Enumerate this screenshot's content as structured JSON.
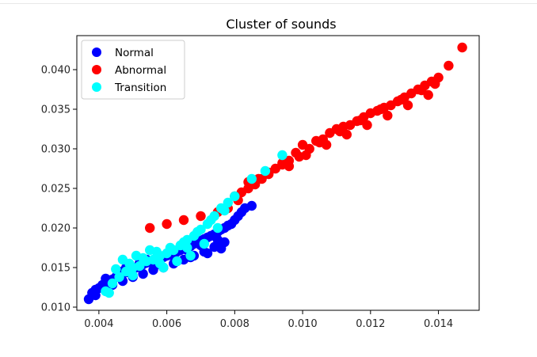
{
  "chart_data": {
    "type": "scatter",
    "title": "Cluster of sounds",
    "xlabel": "",
    "ylabel": "",
    "xlim": [
      0.00335,
      0.0152
    ],
    "ylim": [
      0.0096,
      0.0443
    ],
    "xticks": [
      0.004,
      0.006,
      0.008,
      0.01,
      0.012,
      0.014
    ],
    "xtick_labels": [
      "0.004",
      "0.006",
      "0.008",
      "0.010",
      "0.012",
      "0.014"
    ],
    "yticks": [
      0.01,
      0.015,
      0.02,
      0.025,
      0.03,
      0.035,
      0.04
    ],
    "ytick_labels": [
      "0.010",
      "0.015",
      "0.020",
      "0.025",
      "0.030",
      "0.035",
      "0.040"
    ],
    "grid": false,
    "legend_position": "upper-left",
    "series": [
      {
        "name": "Normal",
        "color": "#0000ff",
        "x": [
          0.0037,
          0.0038,
          0.0039,
          0.004,
          0.0041,
          0.0042,
          0.0043,
          0.0044,
          0.0045,
          0.0046,
          0.0047,
          0.0048,
          0.0049,
          0.005,
          0.0051,
          0.0052,
          0.0053,
          0.0054,
          0.0055,
          0.0056,
          0.0057,
          0.0058,
          0.0059,
          0.006,
          0.0061,
          0.0062,
          0.0063,
          0.0064,
          0.0065,
          0.0066,
          0.0067,
          0.0068,
          0.0069,
          0.007,
          0.0071,
          0.0072,
          0.0073,
          0.0074,
          0.0075,
          0.0076,
          0.0077,
          0.0078,
          0.0079,
          0.008,
          0.0081,
          0.0082,
          0.0083,
          0.0085,
          0.0044,
          0.0047,
          0.005,
          0.0053,
          0.0056,
          0.0059,
          0.0062,
          0.0065,
          0.0068,
          0.0071,
          0.0074,
          0.0077,
          0.0048,
          0.0052,
          0.0057,
          0.0061,
          0.0066,
          0.007,
          0.0075,
          0.0042,
          0.0046,
          0.0054,
          0.0058,
          0.0063,
          0.0067,
          0.0072,
          0.0076,
          0.0039
        ],
        "y": [
          0.011,
          0.0118,
          0.0122,
          0.0124,
          0.0128,
          0.013,
          0.0133,
          0.0135,
          0.0138,
          0.014,
          0.0142,
          0.0144,
          0.0146,
          0.0148,
          0.015,
          0.0152,
          0.0154,
          0.0156,
          0.0157,
          0.0158,
          0.016,
          0.0162,
          0.0163,
          0.0165,
          0.0166,
          0.0168,
          0.017,
          0.0172,
          0.0174,
          0.0175,
          0.0177,
          0.018,
          0.0182,
          0.0184,
          0.0186,
          0.0188,
          0.019,
          0.0192,
          0.0195,
          0.0198,
          0.02,
          0.0203,
          0.0205,
          0.021,
          0.0215,
          0.022,
          0.0225,
          0.0228,
          0.0128,
          0.0133,
          0.0138,
          0.0142,
          0.0147,
          0.015,
          0.0155,
          0.016,
          0.0165,
          0.017,
          0.0176,
          0.0182,
          0.015,
          0.0156,
          0.0162,
          0.0168,
          0.0172,
          0.0178,
          0.0185,
          0.0136,
          0.0145,
          0.016,
          0.0154,
          0.0158,
          0.0163,
          0.0168,
          0.0174,
          0.0115
        ]
      },
      {
        "name": "Abnormal",
        "color": "#ff0000",
        "x": [
          0.0055,
          0.006,
          0.0065,
          0.007,
          0.0075,
          0.0078,
          0.008,
          0.0082,
          0.0084,
          0.0086,
          0.0088,
          0.009,
          0.0092,
          0.0094,
          0.0096,
          0.0098,
          0.01,
          0.0102,
          0.0104,
          0.0106,
          0.0108,
          0.011,
          0.0112,
          0.0114,
          0.0116,
          0.0118,
          0.012,
          0.0122,
          0.0124,
          0.0126,
          0.0128,
          0.013,
          0.0132,
          0.0134,
          0.0136,
          0.0138,
          0.014,
          0.0143,
          0.0147,
          0.0084,
          0.009,
          0.0096,
          0.0101,
          0.0107,
          0.0113,
          0.0119,
          0.0125,
          0.0131,
          0.0137,
          0.0094,
          0.0099,
          0.0105,
          0.0111,
          0.0117,
          0.0123,
          0.0129,
          0.0135,
          0.0139,
          0.0081,
          0.0087
        ],
        "y": [
          0.02,
          0.0205,
          0.021,
          0.0215,
          0.022,
          0.0225,
          0.024,
          0.0245,
          0.025,
          0.0255,
          0.0262,
          0.0268,
          0.0275,
          0.028,
          0.0285,
          0.0295,
          0.0305,
          0.03,
          0.031,
          0.0312,
          0.032,
          0.0325,
          0.0328,
          0.033,
          0.0335,
          0.034,
          0.0345,
          0.0348,
          0.0352,
          0.0355,
          0.036,
          0.0365,
          0.037,
          0.0375,
          0.038,
          0.0385,
          0.039,
          0.0405,
          0.0428,
          0.0258,
          0.027,
          0.0278,
          0.0292,
          0.0305,
          0.0318,
          0.033,
          0.0342,
          0.0355,
          0.0368,
          0.0282,
          0.029,
          0.0308,
          0.0322,
          0.0336,
          0.035,
          0.0362,
          0.0374,
          0.0382,
          0.0235,
          0.0262
        ]
      },
      {
        "name": "Transition",
        "color": "#00ffff",
        "x": [
          0.0042,
          0.0044,
          0.0046,
          0.0048,
          0.005,
          0.0052,
          0.0054,
          0.0056,
          0.0058,
          0.006,
          0.0062,
          0.0064,
          0.0066,
          0.0068,
          0.007,
          0.0072,
          0.0074,
          0.0076,
          0.0078,
          0.008,
          0.0085,
          0.0089,
          0.0094,
          0.0045,
          0.0049,
          0.0053,
          0.0057,
          0.0061,
          0.0065,
          0.0069,
          0.0073,
          0.0077,
          0.0047,
          0.0051,
          0.0055,
          0.0059,
          0.0063,
          0.0067,
          0.0071,
          0.0075,
          0.0043,
          0.005,
          0.0058,
          0.0066
        ],
        "y": [
          0.012,
          0.013,
          0.0138,
          0.0145,
          0.015,
          0.0152,
          0.0158,
          0.016,
          0.0165,
          0.0168,
          0.0172,
          0.0178,
          0.0185,
          0.019,
          0.0198,
          0.0205,
          0.0215,
          0.0225,
          0.0232,
          0.024,
          0.0262,
          0.0272,
          0.0292,
          0.0148,
          0.0155,
          0.0162,
          0.017,
          0.0175,
          0.0182,
          0.0195,
          0.021,
          0.0222,
          0.016,
          0.0165,
          0.0172,
          0.015,
          0.0158,
          0.0165,
          0.018,
          0.02,
          0.0118,
          0.014,
          0.0155,
          0.0175
        ]
      }
    ]
  }
}
